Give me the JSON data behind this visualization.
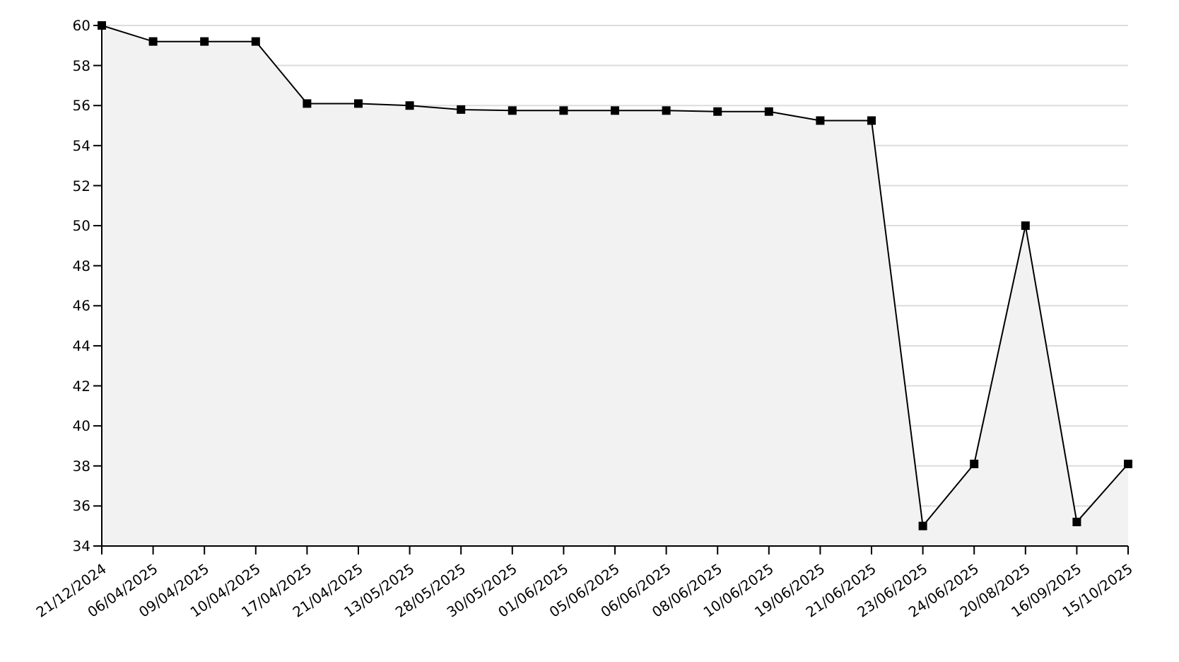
{
  "chart_data": {
    "type": "area",
    "categories": [
      "21/12/2024",
      "06/04/2025",
      "09/04/2025",
      "10/04/2025",
      "17/04/2025",
      "21/04/2025",
      "13/05/2025",
      "28/05/2025",
      "30/05/2025",
      "01/06/2025",
      "05/06/2025",
      "06/06/2025",
      "08/06/2025",
      "10/06/2025",
      "19/06/2025",
      "21/06/2025",
      "23/06/2025",
      "24/06/2025",
      "20/08/2025",
      "16/09/2025",
      "15/10/2025"
    ],
    "series": [
      {
        "color": "#000000",
        "values": [
          60,
          59.2,
          59.2,
          59.2,
          56.1,
          56.1,
          56.0,
          55.8,
          55.75,
          55.75,
          55.75,
          55.75,
          55.7,
          55.7,
          55.25,
          55.25,
          35.0,
          38.1,
          50.0,
          35.2,
          38.1
        ]
      }
    ],
    "ylim": [
      34,
      60
    ],
    "yticks": [
      34,
      36,
      38,
      40,
      42,
      44,
      46,
      48,
      50,
      52,
      54,
      56,
      58,
      60
    ],
    "grid": "y",
    "marker": "square"
  }
}
